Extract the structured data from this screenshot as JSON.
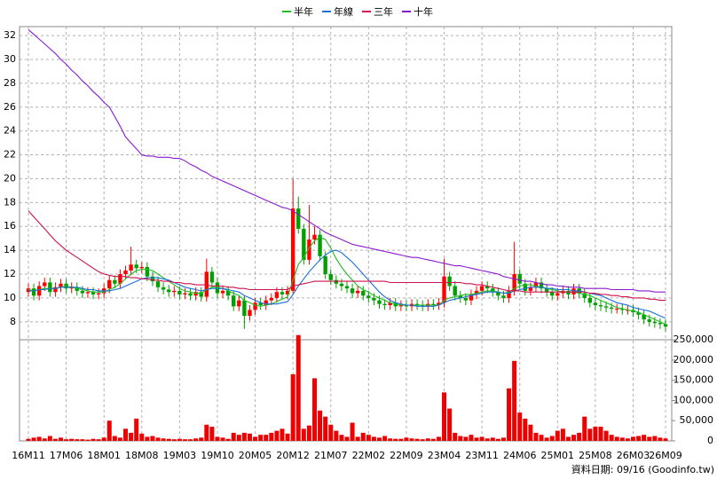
{
  "chart_data": {
    "type": "candlestick",
    "categories": [
      "16M11",
      null,
      null,
      null,
      null,
      null,
      null,
      "17M06",
      null,
      null,
      null,
      null,
      null,
      null,
      "18M01",
      null,
      null,
      null,
      null,
      null,
      null,
      "18M08",
      null,
      null,
      null,
      null,
      null,
      null,
      "19M03",
      null,
      null,
      null,
      null,
      null,
      null,
      "19M10",
      null,
      null,
      null,
      null,
      null,
      null,
      "20M05",
      null,
      null,
      null,
      null,
      null,
      null,
      "20M12",
      null,
      null,
      null,
      null,
      null,
      null,
      "21M07",
      null,
      null,
      null,
      null,
      null,
      null,
      "22M02",
      null,
      null,
      null,
      null,
      null,
      null,
      "22M09",
      null,
      null,
      null,
      null,
      null,
      null,
      "23M04",
      null,
      null,
      null,
      null,
      null,
      null,
      "23M11",
      null,
      null,
      null,
      null,
      null,
      null,
      "24M06",
      null,
      null,
      null,
      null,
      null,
      null,
      "25M01",
      null,
      null,
      null,
      null,
      null,
      null,
      "25M08",
      null,
      null,
      null,
      null,
      null,
      null,
      "26M03",
      null,
      null,
      null,
      null,
      null,
      "26M09"
    ],
    "open": [
      10.5,
      10.8,
      10.2,
      11.0,
      11.3,
      10.5,
      10.9,
      11.2,
      10.8,
      10.9,
      10.6,
      10.4,
      10.5,
      10.3,
      10.4,
      10.8,
      11.5,
      11.2,
      12.0,
      12.3,
      12.8,
      12.5,
      12.6,
      11.8,
      11.4,
      10.9,
      10.7,
      10.5,
      10.6,
      10.3,
      10.4,
      10.2,
      10.5,
      10.1,
      12.2,
      11.3,
      10.4,
      10.6,
      10.2,
      9.3,
      9.8,
      8.5,
      9.0,
      9.6,
      9.4,
      9.8,
      10.0,
      10.5,
      10.3,
      10.6,
      17.5,
      15.8,
      13.2,
      14.9,
      15.3,
      13.5,
      12.0,
      11.5,
      11.2,
      11.0,
      10.8,
      10.4,
      10.6,
      10.2,
      10.0,
      9.8,
      9.5,
      9.4,
      9.6,
      9.3,
      9.4,
      9.3,
      9.5,
      9.4,
      9.3,
      9.5,
      9.4,
      9.6,
      11.8,
      11.0,
      10.2,
      10.0,
      9.8,
      10.3,
      10.6,
      11.0,
      10.8,
      10.5,
      10.2,
      10.0,
      10.6,
      12.0,
      11.2,
      10.6,
      10.9,
      11.3,
      10.8,
      10.5,
      10.2,
      10.4,
      10.6,
      10.3,
      10.8,
      10.4,
      10.0,
      9.6,
      9.4,
      9.3,
      9.2,
      9.1,
      9.1,
      9.0,
      9.0,
      8.8,
      8.6,
      8.2,
      8.0,
      7.9,
      7.8
    ],
    "high": [
      11.2,
      11.2,
      11.4,
      11.7,
      11.7,
      11.3,
      11.6,
      11.6,
      11.3,
      11.3,
      11.0,
      10.9,
      10.9,
      10.8,
      11.2,
      11.9,
      11.9,
      12.4,
      12.7,
      14.3,
      13.2,
      13.0,
      13.0,
      12.2,
      11.8,
      11.3,
      11.1,
      11.0,
      11.0,
      10.8,
      10.8,
      10.9,
      10.9,
      13.3,
      12.6,
      11.7,
      11.0,
      11.0,
      10.6,
      10.2,
      10.2,
      9.4,
      10.0,
      10.0,
      10.2,
      10.4,
      10.9,
      10.9,
      11.0,
      20.0,
      18.5,
      16.2,
      17.8,
      16.0,
      15.7,
      13.9,
      12.4,
      11.9,
      11.6,
      11.4,
      11.2,
      11.0,
      11.0,
      10.6,
      10.4,
      10.2,
      9.9,
      10.0,
      10.0,
      9.8,
      9.8,
      9.9,
      9.9,
      9.8,
      9.9,
      9.9,
      10.0,
      13.3,
      12.2,
      11.4,
      10.6,
      10.4,
      10.7,
      11.0,
      11.4,
      11.4,
      11.2,
      10.9,
      10.6,
      11.0,
      14.7,
      12.4,
      11.6,
      11.3,
      11.7,
      11.7,
      11.2,
      10.9,
      10.8,
      11.0,
      11.0,
      11.2,
      11.2,
      10.8,
      10.4,
      10.0,
      9.8,
      9.7,
      9.6,
      9.5,
      9.5,
      9.4,
      9.4,
      9.2,
      9.0,
      8.6,
      8.4,
      8.3,
      8.2
    ],
    "low": [
      10.1,
      9.8,
      9.8,
      10.6,
      10.1,
      10.1,
      10.5,
      10.4,
      10.4,
      10.2,
      10.0,
      10.0,
      9.9,
      9.9,
      10.0,
      10.4,
      10.8,
      10.8,
      11.6,
      11.9,
      12.1,
      12.1,
      11.4,
      11.0,
      10.5,
      10.3,
      10.1,
      10.1,
      9.9,
      9.9,
      9.8,
      9.8,
      9.7,
      9.7,
      10.9,
      10.0,
      10.0,
      9.8,
      8.9,
      8.9,
      7.4,
      8.1,
      8.6,
      9.0,
      9.0,
      9.4,
      9.6,
      9.9,
      9.9,
      10.4,
      15.4,
      12.8,
      12.8,
      14.5,
      13.1,
      11.6,
      11.1,
      10.8,
      10.6,
      10.4,
      10.0,
      10.0,
      9.8,
      9.6,
      9.4,
      9.1,
      9.0,
      9.0,
      8.9,
      8.9,
      8.9,
      8.9,
      9.0,
      8.9,
      8.9,
      9.0,
      9.0,
      9.2,
      10.6,
      9.8,
      9.6,
      9.4,
      9.4,
      9.9,
      10.2,
      10.4,
      10.1,
      9.8,
      9.6,
      9.6,
      10.2,
      10.8,
      10.2,
      10.2,
      10.5,
      10.4,
      10.1,
      9.8,
      9.8,
      10.0,
      9.9,
      9.9,
      10.0,
      9.6,
      9.2,
      9.0,
      8.9,
      8.8,
      8.7,
      8.7,
      8.6,
      8.6,
      8.4,
      8.2,
      7.8,
      7.6,
      7.5,
      7.4,
      7.2
    ],
    "close": [
      10.8,
      10.2,
      11.0,
      11.3,
      10.5,
      10.9,
      11.2,
      10.8,
      10.9,
      10.6,
      10.4,
      10.5,
      10.3,
      10.4,
      10.8,
      11.5,
      11.2,
      12.0,
      12.3,
      12.8,
      12.5,
      12.6,
      11.8,
      11.4,
      10.9,
      10.7,
      10.5,
      10.6,
      10.3,
      10.4,
      10.2,
      10.5,
      10.1,
      12.2,
      11.3,
      10.4,
      10.6,
      10.2,
      9.3,
      9.8,
      8.5,
      9.0,
      9.6,
      9.4,
      9.8,
      10.0,
      10.5,
      10.3,
      10.6,
      17.5,
      15.8,
      13.2,
      14.9,
      15.3,
      13.5,
      12.0,
      11.5,
      11.2,
      11.0,
      10.8,
      10.4,
      10.6,
      10.2,
      10.0,
      9.8,
      9.5,
      9.4,
      9.6,
      9.3,
      9.4,
      9.3,
      9.5,
      9.4,
      9.3,
      9.5,
      9.4,
      9.6,
      11.8,
      11.0,
      10.2,
      10.0,
      9.8,
      10.3,
      10.6,
      11.0,
      10.8,
      10.5,
      10.2,
      10.0,
      10.6,
      12.0,
      11.2,
      10.6,
      10.9,
      11.3,
      10.8,
      10.5,
      10.2,
      10.4,
      10.6,
      10.3,
      10.8,
      10.4,
      10.0,
      9.6,
      9.4,
      9.3,
      9.2,
      9.1,
      9.1,
      9.0,
      9.0,
      8.8,
      8.6,
      8.2,
      8.0,
      7.9,
      7.8,
      7.6
    ],
    "up_color": "#ff0000",
    "down_color": "#00a000",
    "series": [
      {
        "name": "半年",
        "color": "#22bb22",
        "values": [
          10.7,
          10.6,
          10.7,
          10.8,
          10.8,
          10.8,
          10.9,
          11.0,
          10.9,
          10.8,
          10.7,
          10.6,
          10.5,
          10.5,
          10.5,
          10.7,
          10.9,
          11.2,
          11.6,
          12.0,
          12.3,
          12.4,
          12.4,
          12.3,
          12.0,
          11.7,
          11.4,
          11.1,
          10.8,
          10.6,
          10.5,
          10.4,
          10.4,
          10.7,
          10.9,
          10.9,
          10.8,
          10.6,
          10.4,
          10.2,
          9.8,
          9.6,
          9.4,
          9.3,
          9.4,
          9.5,
          9.7,
          9.9,
          10.1,
          11.5,
          12.8,
          13.4,
          14.2,
          14.8,
          15.1,
          14.9,
          14.2,
          13.3,
          12.6,
          12.0,
          11.5,
          11.0,
          10.7,
          10.5,
          10.2,
          10.0,
          9.8,
          9.6,
          9.5,
          9.4,
          9.4,
          9.4,
          9.4,
          9.4,
          9.4,
          9.4,
          9.4,
          9.8,
          10.0,
          10.1,
          10.2,
          10.3,
          10.3,
          10.4,
          10.5,
          10.6,
          10.6,
          10.5,
          10.4,
          10.5,
          10.8,
          11.0,
          11.1,
          11.1,
          11.0,
          10.9,
          10.8,
          10.7,
          10.6,
          10.5,
          10.5,
          10.5,
          10.4,
          10.3,
          10.2,
          10.0,
          9.8,
          9.6,
          9.4,
          9.2,
          9.1,
          9.0,
          8.9,
          8.8,
          8.6,
          8.4,
          8.2,
          8.0,
          7.8
        ]
      },
      {
        "name": "年線",
        "color": "#1a6fd8",
        "values": [
          10.6,
          10.6,
          10.7,
          10.7,
          10.8,
          10.8,
          10.9,
          10.9,
          10.9,
          10.9,
          10.8,
          10.7,
          10.7,
          10.6,
          10.6,
          10.6,
          10.7,
          10.8,
          11.0,
          11.2,
          11.4,
          11.6,
          11.7,
          11.7,
          11.7,
          11.6,
          11.5,
          11.3,
          11.1,
          10.9,
          10.8,
          10.7,
          10.6,
          10.7,
          10.8,
          10.8,
          10.8,
          10.7,
          10.6,
          10.5,
          10.2,
          10.0,
          9.8,
          9.6,
          9.5,
          9.5,
          9.5,
          9.6,
          9.7,
          10.3,
          11.0,
          11.6,
          12.2,
          12.7,
          13.2,
          13.6,
          13.9,
          14.0,
          13.8,
          13.4,
          13.0,
          12.5,
          12.0,
          11.5,
          11.0,
          10.5,
          10.1,
          9.8,
          9.6,
          9.5,
          9.4,
          9.4,
          9.3,
          9.3,
          9.3,
          9.3,
          9.4,
          9.6,
          9.8,
          9.9,
          10.0,
          10.1,
          10.2,
          10.3,
          10.4,
          10.5,
          10.5,
          10.5,
          10.4,
          10.4,
          10.6,
          10.7,
          10.8,
          10.9,
          10.9,
          10.9,
          10.8,
          10.8,
          10.7,
          10.7,
          10.7,
          10.6,
          10.6,
          10.5,
          10.4,
          10.3,
          10.2,
          10.0,
          9.8,
          9.6,
          9.5,
          9.4,
          9.2,
          9.1,
          9.0,
          8.9,
          8.7,
          8.5,
          8.3
        ]
      },
      {
        "name": "三年",
        "color": "#d0104c",
        "values": [
          17.3,
          16.8,
          16.3,
          15.8,
          15.3,
          14.8,
          14.4,
          14.0,
          13.7,
          13.4,
          13.1,
          12.8,
          12.5,
          12.2,
          12.0,
          11.9,
          11.8,
          11.8,
          11.8,
          11.7,
          11.7,
          11.6,
          11.6,
          11.5,
          11.5,
          11.4,
          11.4,
          11.3,
          11.3,
          11.2,
          11.2,
          11.1,
          11.1,
          11.1,
          11.0,
          11.0,
          11.0,
          10.9,
          10.9,
          10.8,
          10.8,
          10.7,
          10.7,
          10.7,
          10.7,
          10.7,
          10.7,
          10.7,
          10.7,
          11.0,
          11.1,
          11.2,
          11.3,
          11.4,
          11.4,
          11.4,
          11.4,
          11.4,
          11.4,
          11.4,
          11.4,
          11.4,
          11.4,
          11.4,
          11.4,
          11.4,
          11.4,
          11.3,
          11.3,
          11.3,
          11.3,
          11.3,
          11.3,
          11.3,
          11.3,
          11.3,
          11.3,
          11.3,
          11.3,
          11.3,
          11.3,
          11.2,
          11.2,
          11.1,
          11.1,
          11.0,
          10.9,
          10.8,
          10.7,
          10.6,
          10.6,
          10.6,
          10.5,
          10.5,
          10.5,
          10.5,
          10.5,
          10.5,
          10.5,
          10.5,
          10.5,
          10.5,
          10.5,
          10.5,
          10.4,
          10.4,
          10.3,
          10.3,
          10.2,
          10.2,
          10.1,
          10.1,
          10.0,
          10.0,
          10.0,
          9.9,
          9.9,
          9.8,
          9.8
        ]
      },
      {
        "name": "十年",
        "color": "#8a1ad0",
        "values": [
          32.5,
          32.1,
          31.7,
          31.3,
          30.9,
          30.5,
          30.0,
          29.6,
          29.1,
          28.7,
          28.2,
          27.8,
          27.3,
          26.9,
          26.4,
          26.0,
          25.2,
          24.4,
          23.5,
          23.0,
          22.5,
          22.0,
          21.9,
          21.9,
          21.8,
          21.8,
          21.8,
          21.7,
          21.7,
          21.5,
          21.2,
          21.0,
          20.7,
          20.5,
          20.2,
          20.0,
          19.8,
          19.6,
          19.4,
          19.2,
          19.0,
          18.8,
          18.6,
          18.4,
          18.2,
          18.0,
          17.8,
          17.6,
          17.5,
          17.3,
          17.0,
          16.7,
          16.4,
          16.1,
          15.8,
          15.5,
          15.3,
          15.1,
          14.9,
          14.7,
          14.5,
          14.4,
          14.3,
          14.2,
          14.1,
          14.0,
          13.9,
          13.8,
          13.7,
          13.6,
          13.5,
          13.4,
          13.4,
          13.3,
          13.2,
          13.1,
          13.0,
          12.9,
          12.8,
          12.7,
          12.7,
          12.6,
          12.5,
          12.4,
          12.3,
          12.2,
          12.1,
          12.0,
          11.8,
          11.7,
          11.6,
          11.5,
          11.4,
          11.4,
          11.3,
          11.2,
          11.1,
          11.1,
          11.0,
          11.0,
          10.9,
          10.9,
          10.9,
          10.8,
          10.8,
          10.8,
          10.8,
          10.8,
          10.7,
          10.7,
          10.7,
          10.7,
          10.7,
          10.6,
          10.6,
          10.6,
          10.5,
          10.5,
          10.5
        ]
      }
    ],
    "ylim": [
      6.5,
      32.75
    ],
    "yticks": [
      8,
      10,
      12,
      14,
      16,
      18,
      20,
      22,
      24,
      26,
      28,
      30,
      32
    ],
    "grid": true,
    "volume": {
      "color": "#ee0000",
      "values": [
        5000,
        8000,
        10000,
        6000,
        12000,
        5000,
        8000,
        4000,
        5000,
        4000,
        4000,
        3000,
        5000,
        4000,
        8000,
        50000,
        12000,
        8000,
        30000,
        20000,
        55000,
        18000,
        10000,
        12000,
        8000,
        6000,
        5000,
        4000,
        5000,
        4000,
        4000,
        6000,
        8000,
        40000,
        35000,
        10000,
        8000,
        5000,
        20000,
        15000,
        20000,
        18000,
        10000,
        15000,
        15000,
        20000,
        25000,
        30000,
        18000,
        165000,
        262000,
        30000,
        38000,
        155000,
        75000,
        60000,
        40000,
        25000,
        15000,
        10000,
        45000,
        10000,
        20000,
        15000,
        10000,
        8000,
        12000,
        6000,
        5000,
        5000,
        8000,
        6000,
        5000,
        4000,
        6000,
        5000,
        10000,
        120000,
        80000,
        20000,
        12000,
        10000,
        15000,
        8000,
        10000,
        6000,
        8000,
        5000,
        8000,
        130000,
        198000,
        70000,
        55000,
        40000,
        20000,
        15000,
        8000,
        12000,
        25000,
        30000,
        10000,
        15000,
        20000,
        60000,
        30000,
        35000,
        35000,
        25000,
        15000,
        10000,
        8000,
        6000,
        10000,
        12000,
        15000,
        10000,
        12000,
        8000,
        6000
      ],
      "ylim": [
        0,
        268000
      ],
      "yticks": [
        0,
        {
          "value": 50000,
          "label": "50,000"
        },
        {
          "value": 100000,
          "label": "100,000"
        },
        {
          "value": 150000,
          "label": "150,000"
        },
        {
          "value": 200000,
          "label": "200,000"
        },
        {
          "value": 250000,
          "label": "250,000"
        }
      ]
    },
    "footer": "資料日期: 09/16 (Goodinfo.tw)"
  }
}
